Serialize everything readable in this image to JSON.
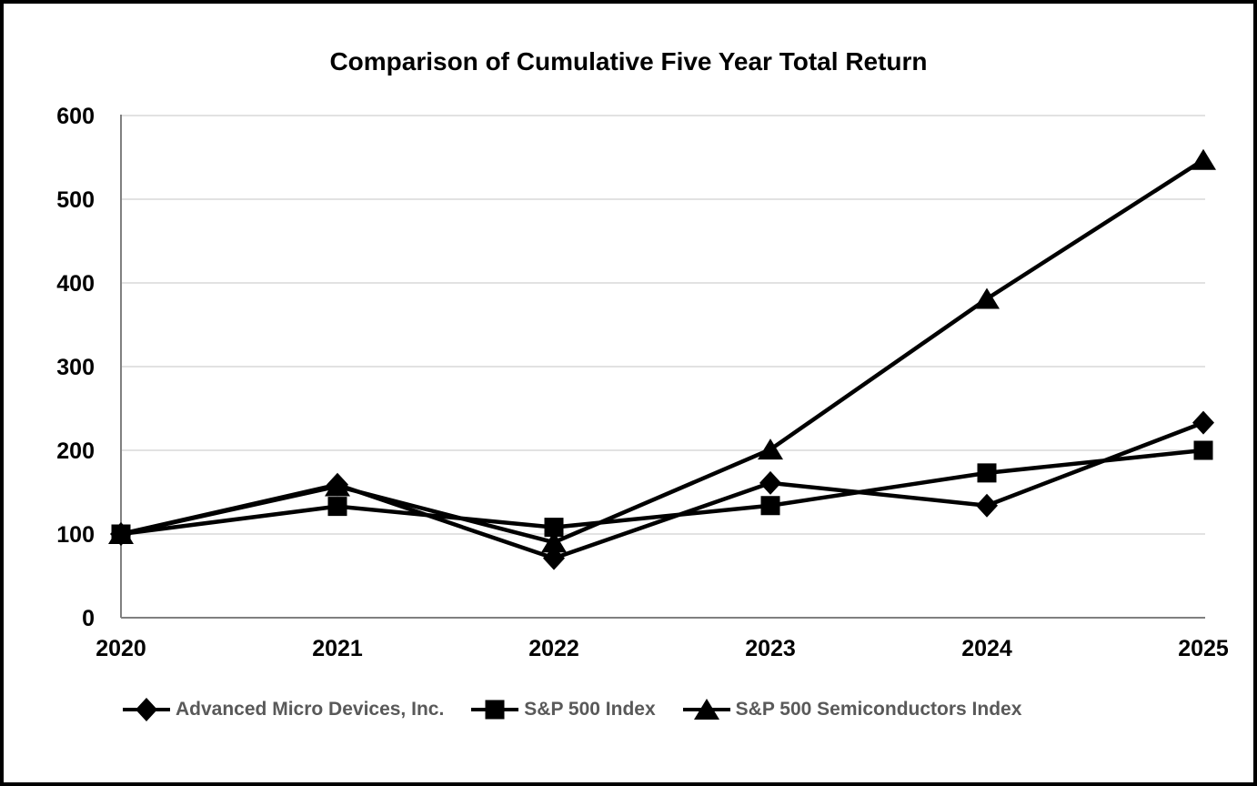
{
  "chart": {
    "title": "Comparison of Cumulative Five Year Total Return"
  },
  "chart_data": {
    "type": "line",
    "title": "Comparison of Cumulative Five Year Total Return",
    "categories": [
      "2020",
      "2021",
      "2022",
      "2023",
      "2024",
      "2025"
    ],
    "series": [
      {
        "name": "Advanced Micro Devices, Inc.",
        "marker": "diamond",
        "values": [
          100,
          159,
          71,
          161,
          134,
          233
        ]
      },
      {
        "name": "S&P 500 Index",
        "marker": "square",
        "values": [
          100,
          133,
          108,
          134,
          173,
          200
        ]
      },
      {
        "name": "S&P 500 Semiconductors Index",
        "marker": "triangle",
        "values": [
          100,
          157,
          90,
          201,
          381,
          547
        ]
      }
    ],
    "xlabel": "",
    "ylabel": "",
    "ylim": [
      0,
      600
    ],
    "yticks": [
      0,
      100,
      200,
      300,
      400,
      500,
      600
    ],
    "grid": "horizontal-only",
    "legend_position": "bottom",
    "series_color": "#000000",
    "gridline_color": "#d9d9d9",
    "axis_color": "#808080",
    "tick_label_color": "#000000",
    "legend_text_color": "#595959",
    "title_color": "#000000"
  }
}
